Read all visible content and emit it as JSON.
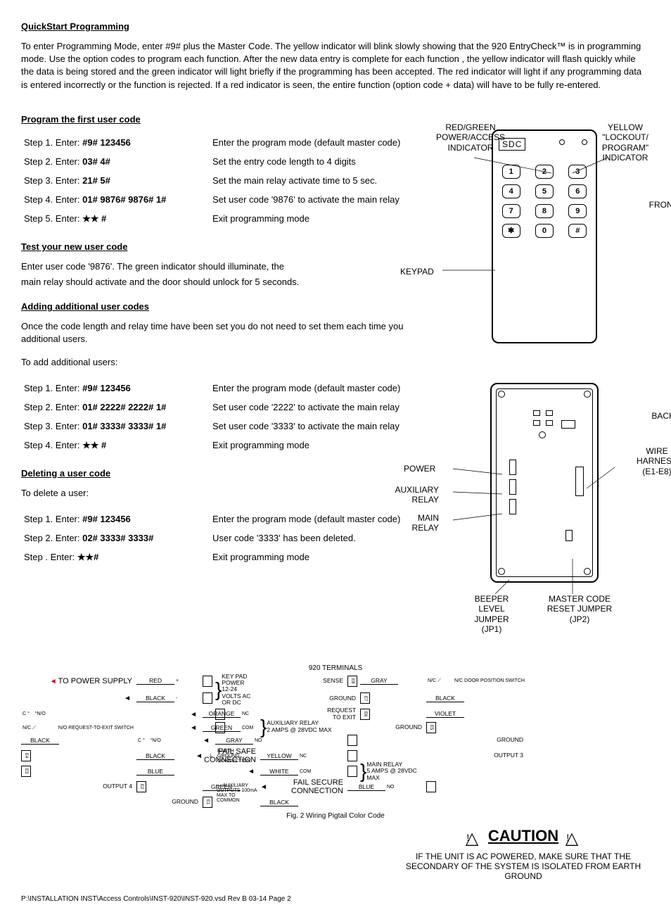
{
  "title": "QuickStart  Programming",
  "intro": "To enter Programming Mode, enter #9# plus the Master Code. The yellow indicator will blink slowly showing that the  920 EntryCheck™ is in programming mode. Use the option codes to program each function.   After the new data entry is complete for each function , the yellow indicator will flash quickly while the data is being stored and the green indicator will light briefly if the programming has been accepted.  The red indicator will light if any programming data is entered incorrectly or the function is rejected. If a red indicator is seen, the entire function (option code + data)  will have to be fully re-entered.",
  "sec1_title": "Program the first user code",
  "sec1_steps": [
    {
      "label": "Step 1. Enter:",
      "code": "#9#  123456",
      "desc": "Enter the program mode (default master code)"
    },
    {
      "label": "Step 2. Enter:",
      "code": "03#  4#",
      "desc": "Set the entry code length to 4 digits"
    },
    {
      "label": "Step 3. Enter:",
      "code": "21# 5#",
      "desc": "Set the main relay activate time to 5 sec."
    },
    {
      "label": "Step 4. Enter:",
      "code": "01#  9876# 9876# 1#",
      "desc": "Set user code '9876' to activate  the main relay"
    },
    {
      "label": "Step 5. Enter:",
      "code": "★★  #",
      "desc": "Exit programming mode"
    }
  ],
  "sec2_title": "Test  your new user code",
  "sec2_p1": "Enter user code '9876'. The green indicator should illuminate, the",
  "sec2_p2": "main relay should activate and the  door should unlock for 5 seconds.",
  "sec3_title": "Adding additional user codes",
  "sec3_p1": "Once the code length and relay time have been set  you do not need to set them each time you additional  users.",
  "sec3_p2": "To add additional users:",
  "sec3_steps": [
    {
      "label": "Step 1. Enter:",
      "code": "#9#  123456",
      "desc": "Enter the program mode (default master code)"
    },
    {
      "label": "Step 2. Enter:",
      "code": "01#  2222# 2222# 1#",
      "desc": "Set user code '2222' to activate  the main relay"
    },
    {
      "label": "Step 3. Enter:",
      "code": "01#  3333# 3333# 1#",
      "desc": "Set user code '3333' to activate  the main relay"
    },
    {
      "label": "Step 4. Enter:",
      "code": "★★ #",
      "desc": "Exit programming mode"
    }
  ],
  "sec4_title": "Deleting a  user code",
  "sec4_p1": "To delete a user:",
  "sec4_steps": [
    {
      "label": "Step 1. Enter:",
      "code": "#9#  123456",
      "desc": "Enter the program mode (default master code)"
    },
    {
      "label": "Step 2. Enter:",
      "code": "02#  3333# 3333#",
      "desc": "User  code '3333' has been deleted."
    },
    {
      "label": "Step . Enter:",
      "code": "★★#",
      "desc": "Exit programming mode"
    }
  ],
  "keypad": {
    "logo_text": "SDC",
    "led1_label": "RED/GREEN POWER/ACCESS INDICATOR",
    "led2_label": "YELLOW \"LOCKOUT/ PROGRAM\" INDICATOR",
    "keypad_label": "KEYPAD",
    "front_label": "FRONT",
    "keys": [
      "1",
      "2",
      "3",
      "4",
      "5",
      "6",
      "7",
      "8",
      "9",
      "✱",
      "0",
      "#"
    ]
  },
  "backpanel": {
    "back_label": "BACK",
    "wire_harness": "WIRE HARNESS (E1-E8)",
    "power": "POWER",
    "aux": "AUXILIARY RELAY",
    "main": "MAIN RELAY",
    "beeper": "BEEPER LEVEL JUMPER (JP1)",
    "master": "MASTER CODE RESET JUMPER (JP2)"
  },
  "wiring": {
    "title": "920 TERMINALS",
    "power_supply": "TO POWER SUPPLY",
    "fail_safe": "FAIL SAFE CONNECTION",
    "fail_secure": "FAIL SECURE CONNECTION",
    "left_wires": [
      {
        "color": "RED",
        "sign": "+"
      },
      {
        "color": "BLACK",
        "sign": "-"
      },
      {
        "color": "ORANGE",
        "sign": "NC"
      },
      {
        "color": "GREEN",
        "sign": "COM"
      },
      {
        "color": "GRAY",
        "sign": "NO"
      },
      {
        "color": "YELLOW",
        "sign": "NC"
      },
      {
        "color": "WHITE",
        "sign": "COM"
      },
      {
        "color": "BLUE",
        "sign": "NO"
      }
    ],
    "left_groups": [
      {
        "label": "KEY PAD POWER",
        "sub": "12-24 VOLTS AC OR DC"
      },
      {
        "label": "AUXILIARY RELAY",
        "sub": "2 AMPS @ 28VDC MAX"
      },
      {
        "label": "MAIN RELAY",
        "sub": "5 AMPS @ 28VDC MAX"
      }
    ],
    "center_terminals": [
      "SENSE",
      "GROUND",
      "REQUEST TO EXIT",
      "GROUND",
      "GROUND",
      "OUTPUT 3",
      "OUTPUT 4",
      "GROUND"
    ],
    "center_e": [
      "E8",
      "E7",
      "E6",
      "E5",
      "E4",
      "E3",
      "E2",
      "E1"
    ],
    "right_wires": [
      "GRAY",
      "BLACK",
      "VIOLET",
      "BLACK",
      "BLACK",
      "BLUE",
      "GREEN",
      "BLACK"
    ],
    "right_callouts": {
      "door_switch": "N/C DOOR POSITION SWITCH",
      "rex_switch": "N/O REQUEST-TO-EXIT SWITCH",
      "earth": "EARTH GROUND CONNECTION",
      "aux_out": "AUXILIARY OUTPUTS 100mA MAX TO COMMON"
    },
    "switch_labels": {
      "nc": "N/C",
      "c": "C",
      "no": "N/O"
    },
    "fig_caption": "Fig. 2 Wiring Pigtail Color Code"
  },
  "caution": {
    "title": "CAUTION",
    "text": "IF THE UNIT IS AC POWERED, MAKE SURE THAT THE SECONDARY OF THE SYSTEM IS ISOLATED FROM EARTH GROUND"
  },
  "footer": "P:\\INSTALLATION INST\\Access Controls\\INST-920\\INST-920.vsd    Rev B    03-14    Page 2"
}
